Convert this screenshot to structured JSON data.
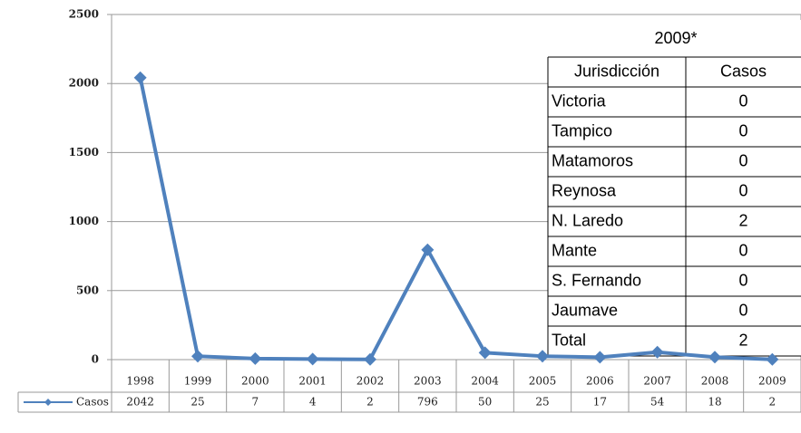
{
  "chart_data": {
    "type": "line",
    "categories": [
      "1998",
      "1999",
      "2000",
      "2001",
      "2002",
      "2003",
      "2004",
      "2005",
      "2006",
      "2007",
      "2008",
      "2009"
    ],
    "series": [
      {
        "name": "Casos",
        "color": "#4f81bd",
        "values": [
          2042,
          25,
          7,
          4,
          2,
          796,
          50,
          25,
          17,
          54,
          18,
          2
        ]
      }
    ],
    "ylim": [
      0,
      2500
    ],
    "yticks": [
      0,
      500,
      1000,
      1500,
      2000,
      2500
    ],
    "grid": true
  },
  "table": {
    "title": "2009*",
    "header": [
      "Jurisdicción",
      "Casos"
    ],
    "rows": [
      [
        "Victoria",
        0
      ],
      [
        "Tampico",
        0
      ],
      [
        "Matamoros",
        0
      ],
      [
        "Reynosa",
        0
      ],
      [
        "N. Laredo",
        2
      ],
      [
        "Mante",
        0
      ],
      [
        "S. Fernando",
        0
      ],
      [
        "Jaumave",
        0
      ],
      [
        "Total",
        2
      ]
    ]
  }
}
